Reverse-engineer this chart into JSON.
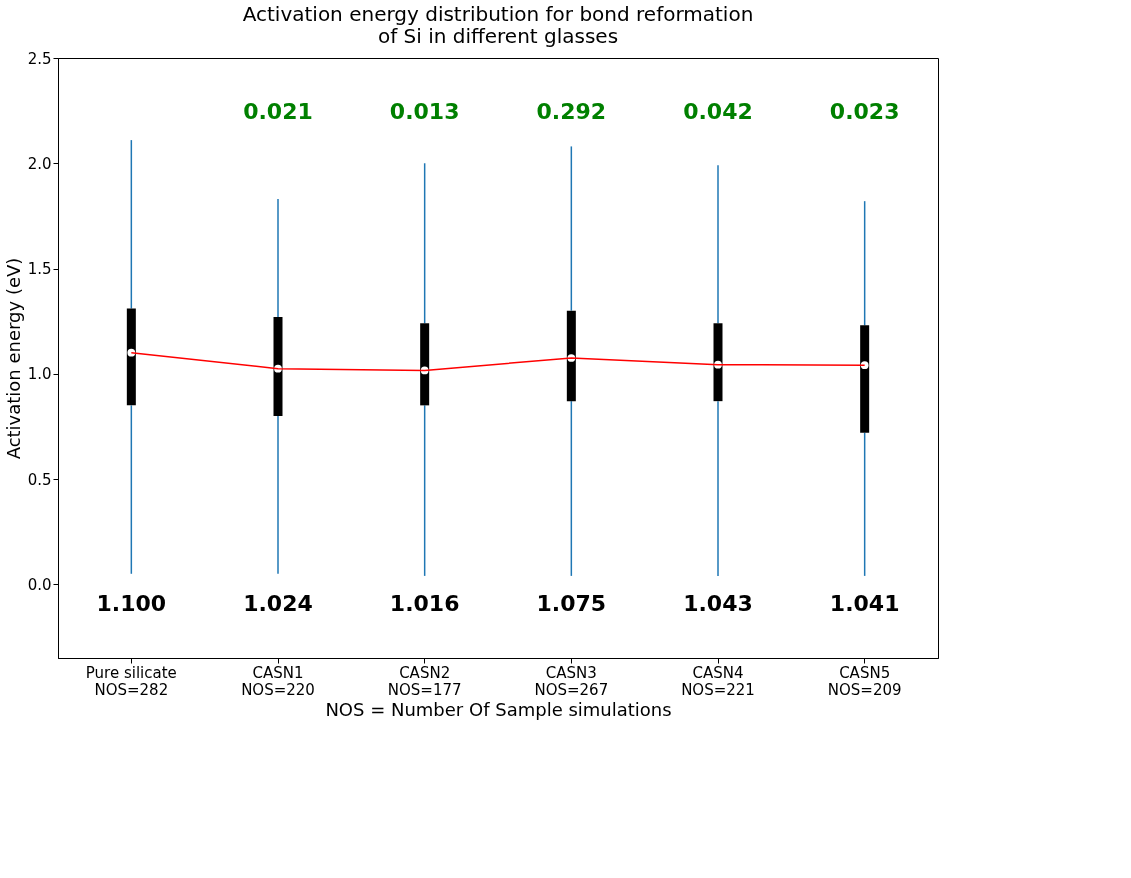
{
  "chart_data": {
    "type": "box",
    "title": [
      "Activation energy distribution for bond reformation",
      "of Si in different glasses"
    ],
    "xlabel": "NOS = Number Of Sample simulations",
    "ylabel": "Activation energy (eV)",
    "categories": [
      "Pure silicate\nNOS=282",
      "CASN1\nNOS=220",
      "CASN2\nNOS=177",
      "CASN3\nNOS=267",
      "CASN4\nNOS=221",
      "CASN5\nNOS=209"
    ],
    "ylim": [
      -0.35,
      2.5
    ],
    "yticks": [
      {
        "value": 0,
        "label": "0.0"
      },
      {
        "value": 0.5,
        "label": "0.5"
      },
      {
        "value": 1,
        "label": "1.0"
      },
      {
        "value": 1.5,
        "label": "1.5"
      },
      {
        "value": 2,
        "label": "2.0"
      },
      {
        "value": 2.5,
        "label": "2.5"
      }
    ],
    "grid": false,
    "series": [
      {
        "color": "#000000",
        "boxes": [
          {
            "low": 0.05,
            "q1": 0.85,
            "median": 1.1,
            "q3": 1.31,
            "high": 2.11
          },
          {
            "low": 0.05,
            "q1": 0.8,
            "median": 1.024,
            "q3": 1.27,
            "high": 1.83
          },
          {
            "low": 0.04,
            "q1": 0.85,
            "median": 1.016,
            "q3": 1.24,
            "high": 2.0
          },
          {
            "low": 0.04,
            "q1": 0.87,
            "median": 1.075,
            "q3": 1.3,
            "high": 2.08
          },
          {
            "low": 0.04,
            "q1": 0.87,
            "median": 1.043,
            "q3": 1.24,
            "high": 1.99
          },
          {
            "low": 0.04,
            "q1": 0.72,
            "median": 1.041,
            "q3": 1.23,
            "high": 1.82
          }
        ]
      },
      {
        "type": "line",
        "color": "#ff0000",
        "marker": "none",
        "values": [
          1.1,
          1.024,
          1.016,
          1.075,
          1.043,
          1.041
        ]
      }
    ],
    "annotations": [
      "1.100",
      "1.024",
      "1.016",
      "1.075",
      "1.043",
      "1.041",
      "0.021",
      "0.013",
      "0.292",
      "0.042",
      "0.023"
    ]
  }
}
